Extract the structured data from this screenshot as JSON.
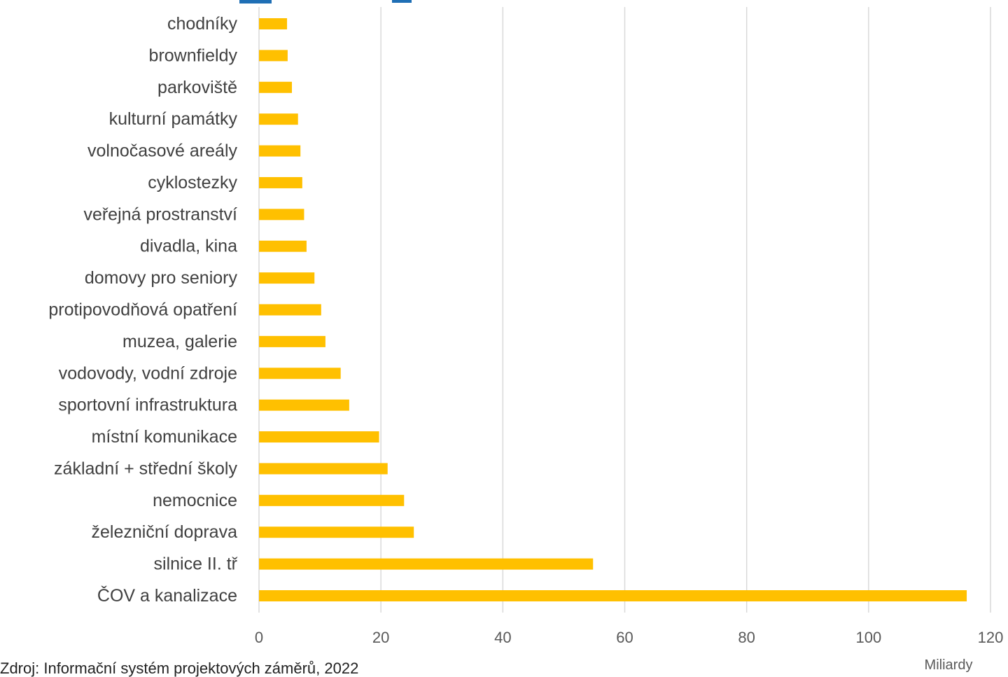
{
  "colors": {
    "bar": "#FFC000",
    "grid": "#D9D9D9",
    "label": "#404040",
    "tick": "#595959",
    "title": "#1F6FB5"
  },
  "chart_data": {
    "type": "bar",
    "orientation": "horizontal",
    "title": "",
    "xlabel": "",
    "ylabel": "",
    "unit_label": "Miliardy",
    "categories": [
      "chodníky",
      "brownfieldy",
      "parkoviště",
      "kulturní památky",
      "volnočasové areály",
      "cyklostezky",
      "veřejná prostranství",
      "divadla, kina",
      "domovy pro seniory",
      "protipovodňová opatření",
      "muzea, galerie",
      "vodovody, vodní zdroje",
      "sportovní infrastruktura",
      "místní komunikace",
      "základní + střední školy",
      "nemocnice",
      "železniční doprava",
      "silnice II. tř",
      "ČOV a kanalizace"
    ],
    "values": [
      4.6,
      4.7,
      5.4,
      6.4,
      6.8,
      7.1,
      7.4,
      7.8,
      9.1,
      10.2,
      10.9,
      13.4,
      14.8,
      19.7,
      21.1,
      23.8,
      25.4,
      54.8,
      116.1
    ],
    "xlim": [
      0,
      120
    ],
    "ticks": [
      0,
      20,
      40,
      60,
      80,
      100,
      120
    ],
    "tick_labels": [
      "0",
      "20",
      "40",
      "60",
      "80",
      "100",
      "120"
    ],
    "grid": true,
    "legend": "none"
  },
  "source": "Zdroj: Informační systém projektových záměrů, 2022"
}
